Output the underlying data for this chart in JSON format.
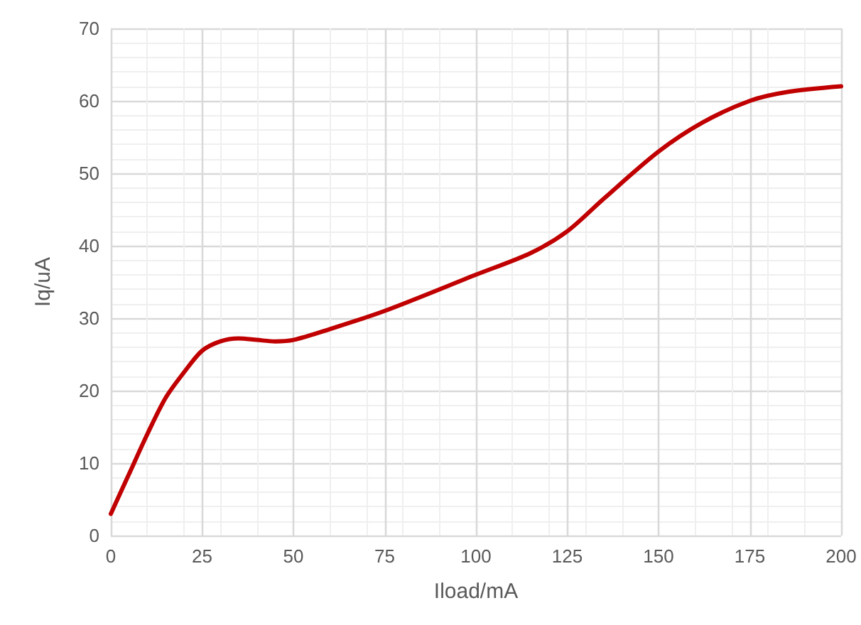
{
  "chart_data": {
    "type": "line",
    "xlabel": "Iload/mA",
    "ylabel": "Iq/uA",
    "xlim": [
      0,
      200
    ],
    "xticks": [
      0,
      25,
      50,
      75,
      100,
      125,
      150,
      175,
      200
    ],
    "ylim": [
      0,
      70
    ],
    "yticks": [
      0,
      10,
      20,
      30,
      40,
      50,
      60,
      70
    ],
    "grid": true,
    "marker": "none",
    "line_style": "solid",
    "series": [
      {
        "color": "#c00000",
        "x": [
          0,
          5,
          10,
          15,
          20,
          25,
          30,
          35,
          40,
          45,
          50,
          60,
          75,
          100,
          115,
          125,
          135,
          150,
          162,
          175,
          185,
          200
        ],
        "values": [
          3,
          8.5,
          14,
          19,
          22.5,
          25.5,
          26.8,
          27.2,
          27,
          26.8,
          27,
          28.5,
          31,
          36,
          39,
          42,
          46.5,
          53,
          57,
          60,
          61.2,
          62
        ]
      }
    ]
  }
}
